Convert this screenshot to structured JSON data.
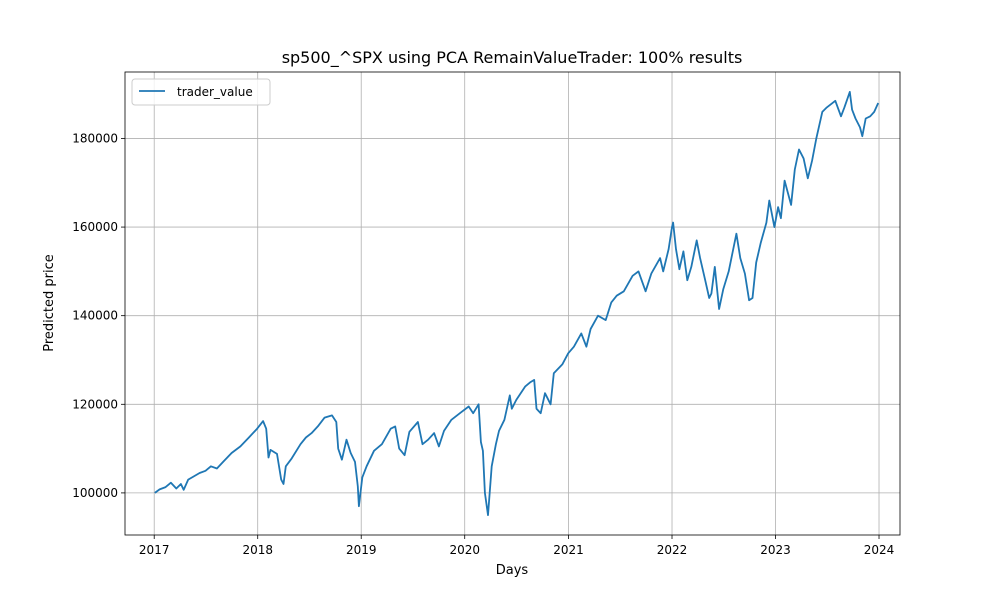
{
  "chart_data": {
    "type": "line",
    "title": "sp500_^SPX using PCA RemainValueTrader: 100% results",
    "xlabel": "Days",
    "ylabel": "Predicted price",
    "xlim": [
      "2016-09-20",
      "2024-03-15"
    ],
    "ylim": [
      90500,
      195000
    ],
    "x_ticks": [
      {
        "label": "2017",
        "date": "2017-01-01"
      },
      {
        "label": "2018",
        "date": "2018-01-01"
      },
      {
        "label": "2019",
        "date": "2019-01-01"
      },
      {
        "label": "2020",
        "date": "2020-01-01"
      },
      {
        "label": "2021",
        "date": "2021-01-01"
      },
      {
        "label": "2022",
        "date": "2022-01-01"
      },
      {
        "label": "2023",
        "date": "2023-01-01"
      },
      {
        "label": "2024",
        "date": "2024-01-01"
      }
    ],
    "y_ticks": [
      100000,
      120000,
      140000,
      160000,
      180000
    ],
    "grid": true,
    "legend_position": "top-left",
    "line_color": "#1f77b4",
    "series": [
      {
        "name": "trader_value",
        "points": [
          [
            "2017-01-03",
            100000
          ],
          [
            "2017-01-20",
            100800
          ],
          [
            "2017-02-10",
            101300
          ],
          [
            "2017-03-01",
            102300
          ],
          [
            "2017-03-20",
            101000
          ],
          [
            "2017-04-05",
            102000
          ],
          [
            "2017-04-15",
            100700
          ],
          [
            "2017-05-01",
            103000
          ],
          [
            "2017-05-20",
            103700
          ],
          [
            "2017-06-10",
            104500
          ],
          [
            "2017-07-01",
            105000
          ],
          [
            "2017-07-20",
            106000
          ],
          [
            "2017-08-10",
            105500
          ],
          [
            "2017-09-01",
            107000
          ],
          [
            "2017-10-01",
            109000
          ],
          [
            "2017-11-01",
            110500
          ],
          [
            "2017-12-01",
            112500
          ],
          [
            "2017-12-30",
            114500
          ],
          [
            "2018-01-20",
            116200
          ],
          [
            "2018-01-31",
            114500
          ],
          [
            "2018-02-08",
            108000
          ],
          [
            "2018-02-15",
            109700
          ],
          [
            "2018-03-10",
            108800
          ],
          [
            "2018-03-25",
            103000
          ],
          [
            "2018-04-02",
            102000
          ],
          [
            "2018-04-10",
            106000
          ],
          [
            "2018-05-01",
            107800
          ],
          [
            "2018-06-01",
            111000
          ],
          [
            "2018-06-20",
            112500
          ],
          [
            "2018-07-10",
            113500
          ],
          [
            "2018-08-01",
            115000
          ],
          [
            "2018-08-25",
            117000
          ],
          [
            "2018-09-20",
            117500
          ],
          [
            "2018-10-05",
            116000
          ],
          [
            "2018-10-12",
            110000
          ],
          [
            "2018-10-25",
            107500
          ],
          [
            "2018-11-10",
            112000
          ],
          [
            "2018-11-25",
            109000
          ],
          [
            "2018-12-10",
            107000
          ],
          [
            "2018-12-20",
            101500
          ],
          [
            "2018-12-24",
            97000
          ],
          [
            "2019-01-05",
            103500
          ],
          [
            "2019-01-20",
            106000
          ],
          [
            "2019-02-15",
            109500
          ],
          [
            "2019-03-15",
            111000
          ],
          [
            "2019-04-15",
            114500
          ],
          [
            "2019-05-01",
            115000
          ],
          [
            "2019-05-15",
            110000
          ],
          [
            "2019-06-03",
            108500
          ],
          [
            "2019-06-20",
            113800
          ],
          [
            "2019-07-20",
            116000
          ],
          [
            "2019-08-05",
            111000
          ],
          [
            "2019-08-25",
            112000
          ],
          [
            "2019-09-15",
            113500
          ],
          [
            "2019-10-02",
            110500
          ],
          [
            "2019-10-20",
            114000
          ],
          [
            "2019-11-15",
            116500
          ],
          [
            "2019-12-15",
            118000
          ],
          [
            "2020-01-15",
            119500
          ],
          [
            "2020-01-31",
            118000
          ],
          [
            "2020-02-19",
            120000
          ],
          [
            "2020-02-27",
            111500
          ],
          [
            "2020-03-05",
            109500
          ],
          [
            "2020-03-12",
            100000
          ],
          [
            "2020-03-23",
            95000
          ],
          [
            "2020-04-05",
            106000
          ],
          [
            "2020-04-20",
            111000
          ],
          [
            "2020-05-01",
            114000
          ],
          [
            "2020-05-20",
            116500
          ],
          [
            "2020-06-08",
            122000
          ],
          [
            "2020-06-15",
            119000
          ],
          [
            "2020-07-01",
            121000
          ],
          [
            "2020-08-01",
            124000
          ],
          [
            "2020-08-20",
            125000
          ],
          [
            "2020-09-02",
            125500
          ],
          [
            "2020-09-10",
            119000
          ],
          [
            "2020-09-25",
            118000
          ],
          [
            "2020-10-10",
            122500
          ],
          [
            "2020-10-30",
            120000
          ],
          [
            "2020-11-10",
            127000
          ],
          [
            "2020-12-10",
            129000
          ],
          [
            "2020-12-31",
            131500
          ],
          [
            "2021-01-20",
            133000
          ],
          [
            "2021-02-15",
            136000
          ],
          [
            "2021-03-05",
            133000
          ],
          [
            "2021-03-20",
            137000
          ],
          [
            "2021-04-15",
            140000
          ],
          [
            "2021-05-12",
            139000
          ],
          [
            "2021-06-01",
            143000
          ],
          [
            "2021-06-20",
            144500
          ],
          [
            "2021-07-15",
            145500
          ],
          [
            "2021-08-15",
            149000
          ],
          [
            "2021-09-05",
            150000
          ],
          [
            "2021-09-30",
            145500
          ],
          [
            "2021-10-20",
            149500
          ],
          [
            "2021-11-20",
            153000
          ],
          [
            "2021-12-01",
            150000
          ],
          [
            "2021-12-20",
            155000
          ],
          [
            "2022-01-01",
            160000
          ],
          [
            "2022-01-05",
            161000
          ],
          [
            "2022-01-15",
            155000
          ],
          [
            "2022-01-27",
            150500
          ],
          [
            "2022-02-10",
            154500
          ],
          [
            "2022-02-24",
            148000
          ],
          [
            "2022-03-10",
            151000
          ],
          [
            "2022-03-29",
            157000
          ],
          [
            "2022-04-10",
            153000
          ],
          [
            "2022-04-28",
            148000
          ],
          [
            "2022-05-12",
            144000
          ],
          [
            "2022-05-20",
            145000
          ],
          [
            "2022-06-01",
            151000
          ],
          [
            "2022-06-16",
            141500
          ],
          [
            "2022-07-01",
            146000
          ],
          [
            "2022-07-20",
            150000
          ],
          [
            "2022-08-16",
            158500
          ],
          [
            "2022-08-30",
            153000
          ],
          [
            "2022-09-15",
            149500
          ],
          [
            "2022-09-30",
            143500
          ],
          [
            "2022-10-12",
            144000
          ],
          [
            "2022-10-25",
            152000
          ],
          [
            "2022-11-10",
            156500
          ],
          [
            "2022-11-30",
            161000
          ],
          [
            "2022-12-10",
            166000
          ],
          [
            "2022-12-28",
            160000
          ],
          [
            "2023-01-10",
            164500
          ],
          [
            "2023-01-20",
            162000
          ],
          [
            "2023-02-02",
            170500
          ],
          [
            "2023-02-25",
            165000
          ],
          [
            "2023-03-10",
            173000
          ],
          [
            "2023-03-25",
            177500
          ],
          [
            "2023-04-10",
            175500
          ],
          [
            "2023-04-25",
            171000
          ],
          [
            "2023-05-10",
            175000
          ],
          [
            "2023-05-25",
            180000
          ],
          [
            "2023-06-15",
            186000
          ],
          [
            "2023-07-01",
            187000
          ],
          [
            "2023-07-31",
            188500
          ],
          [
            "2023-08-20",
            185000
          ],
          [
            "2023-09-01",
            187000
          ],
          [
            "2023-09-20",
            190500
          ],
          [
            "2023-09-28",
            186500
          ],
          [
            "2023-10-10",
            184500
          ],
          [
            "2023-10-26",
            182500
          ],
          [
            "2023-11-03",
            180500
          ],
          [
            "2023-11-15",
            184500
          ],
          [
            "2023-12-01",
            185000
          ],
          [
            "2023-12-15",
            186000
          ],
          [
            "2023-12-29",
            188000
          ]
        ]
      }
    ]
  }
}
